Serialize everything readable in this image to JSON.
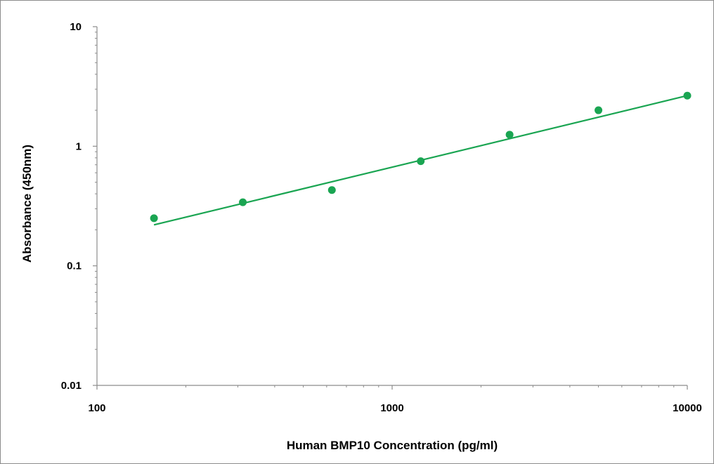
{
  "chart_data": {
    "type": "scatter",
    "title": "",
    "xlabel": "Human BMP10 Concentration (pg/ml)",
    "ylabel": "Absorbance (450nm)",
    "xscale": "log",
    "yscale": "log",
    "xlim": [
      100,
      10000
    ],
    "ylim": [
      0.01,
      10
    ],
    "x_ticks": [
      "100",
      "1000",
      "10000"
    ],
    "y_ticks": [
      "0.01",
      "0.1",
      "1",
      "10"
    ],
    "grid": false,
    "legend": "none",
    "series": [
      {
        "x": [
          156,
          312,
          625,
          1250,
          2500,
          5000,
          10000
        ],
        "y": [
          0.25,
          0.34,
          0.43,
          0.75,
          1.25,
          2.0,
          2.65
        ],
        "color": "#1aa552"
      }
    ],
    "trendline": {
      "type": "power",
      "x": [
        156,
        10000
      ],
      "y": [
        0.22,
        2.65
      ],
      "color": "#1aa552"
    }
  }
}
